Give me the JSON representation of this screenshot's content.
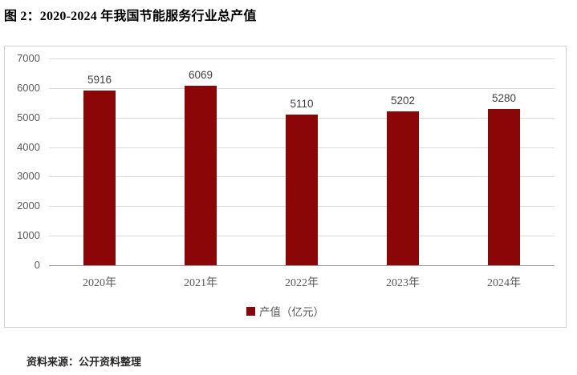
{
  "page": {
    "title": "图 2：2020-2024 年我国节能服务行业总产值",
    "source": "资料来源：公开资料整理"
  },
  "chart_data": {
    "type": "bar",
    "title": "2020-2024 年我国节能服务行业总产值",
    "categories": [
      "2020年",
      "2021年",
      "2022年",
      "2023年",
      "2024年"
    ],
    "values": [
      5916,
      6069,
      5110,
      5202,
      5280
    ],
    "value_labels": [
      "5916",
      "6069",
      "5110",
      "5202",
      "5280"
    ],
    "legend": "产值（亿元）",
    "xlabel": "",
    "ylabel": "",
    "ylim": [
      0,
      7000
    ],
    "ytick_step": 1000,
    "yticks": [
      0,
      1000,
      2000,
      3000,
      4000,
      5000,
      6000,
      7000
    ],
    "grid": true,
    "legend_position": "bottom",
    "colors": {
      "bar": "#8B0606",
      "gridline": "#d9d9d9",
      "axis_line": "#9e9e9e",
      "tick_label": "#595959",
      "value_label": "#404040",
      "frame_border": "#d0d0d0"
    }
  }
}
